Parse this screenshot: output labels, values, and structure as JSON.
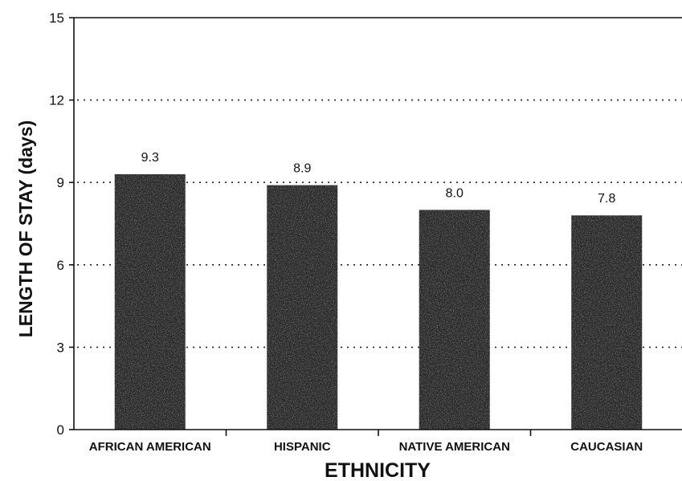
{
  "chart_data": {
    "type": "bar",
    "categories": [
      "AFRICAN AMERICAN",
      "HISPANIC",
      "NATIVE AMERICAN",
      "CAUCASIAN"
    ],
    "values": [
      9.3,
      8.9,
      8.0,
      7.8
    ],
    "value_labels": [
      "9.3",
      "8.9",
      "8.0",
      "7.8"
    ],
    "xlabel": "ETHNICITY",
    "ylabel": "LENGTH OF STAY (days)",
    "ylim": [
      0,
      15
    ],
    "yticks": [
      0,
      3,
      6,
      9,
      12,
      15
    ],
    "grid": true,
    "bar_color": "#2a2a2a"
  }
}
